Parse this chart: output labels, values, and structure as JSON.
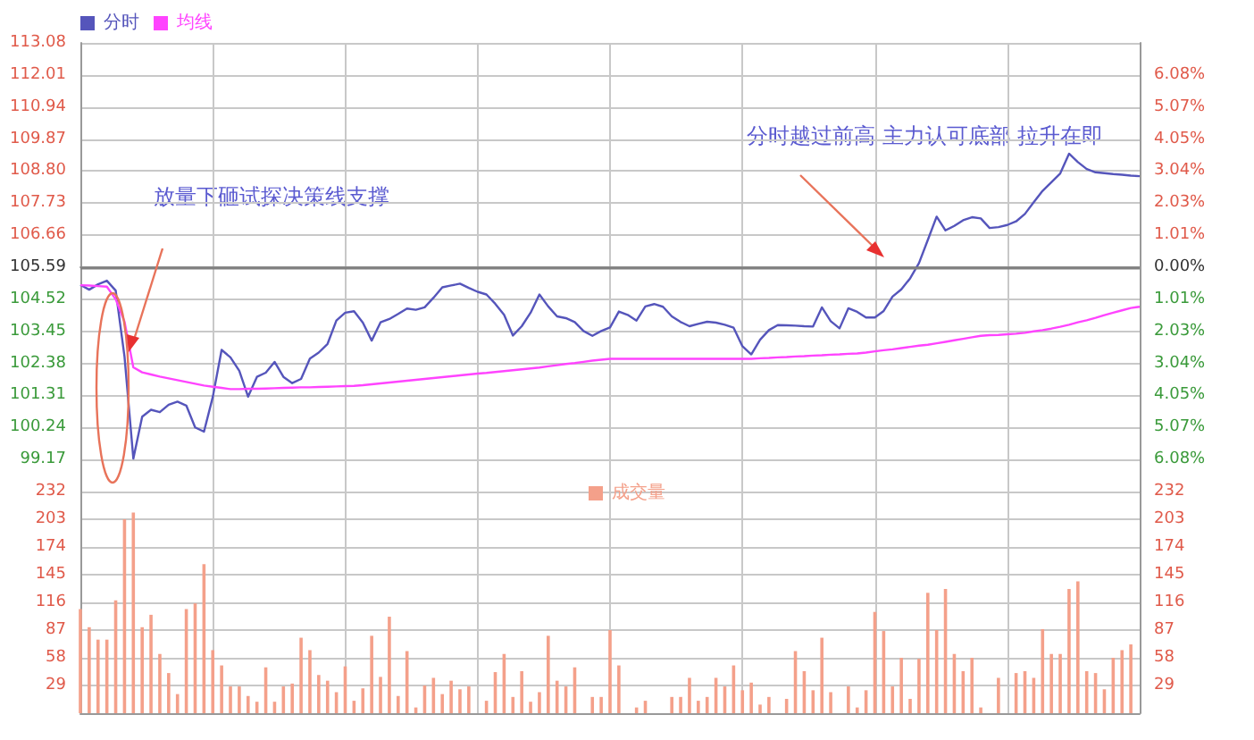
{
  "chart_data": [
    {
      "type": "line",
      "legend": "top left",
      "grid": true,
      "tick_labels": "y",
      "line_style": "solid",
      "annotations": [
        "放量下砸试探决策线支撑",
        "分时越过前高 主力认可底部 拉升在即"
      ],
      "categories": [
        null,
        null,
        null,
        null,
        null,
        null,
        null,
        null,
        null,
        null,
        null,
        null,
        null,
        null,
        null,
        null,
        null,
        null,
        null,
        null,
        null,
        null,
        null,
        null,
        null,
        null,
        null,
        null,
        null,
        null,
        null,
        null,
        null,
        null,
        null,
        null,
        null,
        null,
        null,
        null,
        null,
        null,
        null,
        null,
        null,
        null,
        null,
        null,
        null,
        null,
        null,
        null,
        null,
        null,
        null,
        null,
        null,
        null,
        null,
        null,
        null,
        null,
        null,
        null,
        null,
        null,
        null,
        null,
        null,
        null,
        null,
        null,
        null,
        null,
        null,
        null,
        null,
        null,
        null,
        null,
        null,
        null,
        null,
        null,
        null,
        null,
        null,
        null,
        null,
        null,
        null,
        null,
        null,
        null,
        null,
        null,
        null,
        null,
        null,
        null,
        null,
        null,
        null,
        null,
        null,
        null,
        null,
        null,
        null,
        null,
        null,
        null,
        null,
        null,
        null,
        null,
        null,
        null,
        null,
        null,
        null
      ],
      "ylim": [
        98.1,
        113.08
      ],
      "yticks": [
        99.17,
        100.24,
        101.31,
        102.38,
        103.45,
        104.52,
        105.59,
        106.66,
        107.73,
        {
          "value": 108.8,
          "label": "108.80"
        },
        109.87,
        110.94,
        112.01,
        113.08
      ],
      "y2lim": [
        -7.09,
        7.09
      ],
      "y2ticks": [
        {
          "value": -6.08,
          "label": "6.08%"
        },
        {
          "value": -5.07,
          "label": "5.07%"
        },
        {
          "value": -4.05,
          "label": "4.05%"
        },
        {
          "value": -3.04,
          "label": "3.04%"
        },
        {
          "value": -2.03,
          "label": "2.03%"
        },
        {
          "value": -1.01,
          "label": "1.01%"
        },
        {
          "value": 0,
          "label": "0.00%"
        },
        {
          "value": 1.01,
          "label": "1.01%"
        },
        {
          "value": 2.03,
          "label": "2.03%"
        },
        {
          "value": 3.04,
          "label": "3.04%"
        },
        {
          "value": 4.05,
          "label": "4.05%"
        },
        {
          "value": 5.07,
          "label": "5.07%"
        },
        {
          "value": 6.08,
          "label": "6.08%"
        }
      ],
      "ref_lines": [
        {
          "axis": "y",
          "value": 105.59,
          "color": "#808080"
        }
      ],
      "series": [
        {
          "name": "分时",
          "color": "#5555bb",
          "values": [
            105.0,
            104.84,
            105.02,
            105.14,
            104.81,
            102.6,
            99.2,
            100.6,
            100.83,
            100.75,
            101.0,
            101.1,
            100.97,
            100.24,
            100.1,
            101.26,
            102.83,
            102.58,
            102.13,
            101.27,
            101.93,
            102.07,
            102.43,
            101.93,
            101.72,
            101.86,
            102.54,
            102.74,
            103.03,
            103.81,
            104.07,
            104.12,
            103.74,
            103.14,
            103.75,
            103.86,
            104.03,
            104.21,
            104.17,
            104.25,
            104.57,
            104.92,
            104.98,
            105.04,
            104.9,
            104.77,
            104.68,
            104.37,
            104.0,
            103.31,
            103.62,
            104.07,
            104.68,
            104.28,
            103.95,
            103.89,
            103.76,
            103.46,
            103.3,
            103.46,
            103.58,
            104.11,
            104.0,
            103.81,
            104.28,
            104.36,
            104.27,
            103.95,
            103.76,
            103.62,
            103.7,
            103.77,
            103.74,
            103.67,
            103.57,
            102.95,
            102.68,
            103.17,
            103.49,
            103.66,
            103.65,
            103.64,
            103.62,
            103.61,
            104.25,
            103.79,
            103.55,
            104.22,
            104.1,
            103.91,
            103.91,
            104.13,
            104.61,
            104.85,
            105.22,
            105.73,
            106.5,
            107.28,
            106.82,
            106.97,
            107.16,
            107.26,
            107.22,
            106.9,
            106.93,
            107.0,
            107.12,
            107.37,
            107.76,
            108.14,
            108.43,
            108.72,
            109.38,
            109.1,
            108.87,
            108.76,
            108.73,
            108.7,
            108.68,
            108.65,
            108.63
          ]
        },
        {
          "name": "均线",
          "color": "#ff44ff",
          "values": [
            104.99,
            104.98,
            104.96,
            104.94,
            104.52,
            103.77,
            102.25,
            102.08,
            102.01,
            101.94,
            101.88,
            101.82,
            101.76,
            101.7,
            101.64,
            101.6,
            101.56,
            101.52,
            101.52,
            101.53,
            101.53,
            101.54,
            101.55,
            101.56,
            101.57,
            101.58,
            101.58,
            101.59,
            101.6,
            101.61,
            101.62,
            101.63,
            101.65,
            101.68,
            101.71,
            101.74,
            101.77,
            101.8,
            101.83,
            101.86,
            101.89,
            101.92,
            101.95,
            101.98,
            102.01,
            102.04,
            102.06,
            102.09,
            102.12,
            102.15,
            102.18,
            102.21,
            102.24,
            102.28,
            102.32,
            102.36,
            102.39,
            102.43,
            102.47,
            102.5,
            102.53,
            102.53,
            102.53,
            102.53,
            102.53,
            102.53,
            102.53,
            102.53,
            102.53,
            102.53,
            102.53,
            102.53,
            102.53,
            102.53,
            102.53,
            102.53,
            102.53,
            102.55,
            102.56,
            102.58,
            102.59,
            102.61,
            102.62,
            102.64,
            102.65,
            102.67,
            102.68,
            102.7,
            102.71,
            102.74,
            102.78,
            102.82,
            102.85,
            102.89,
            102.93,
            102.97,
            103.0,
            103.05,
            103.1,
            103.15,
            103.2,
            103.25,
            103.3,
            103.32,
            103.33,
            103.35,
            103.37,
            103.4,
            103.45,
            103.49,
            103.54,
            103.6,
            103.67,
            103.75,
            103.82,
            103.9,
            103.99,
            104.07,
            104.15,
            104.23,
            104.27
          ]
        }
      ]
    },
    {
      "type": "bar",
      "legend": "top",
      "grid": true,
      "tick_labels": "y",
      "categories": [
        null,
        null,
        null,
        null,
        null,
        null,
        null,
        null,
        null,
        null,
        null,
        null,
        null,
        null,
        null,
        null,
        null,
        null,
        null,
        null,
        null,
        null,
        null,
        null,
        null,
        null,
        null,
        null,
        null,
        null,
        null,
        null,
        null,
        null,
        null,
        null,
        null,
        null,
        null,
        null,
        null,
        null,
        null,
        null,
        null,
        null,
        null,
        null,
        null,
        null,
        null,
        null,
        null,
        null,
        null,
        null,
        null,
        null,
        null,
        null,
        null,
        null,
        null,
        null,
        null,
        null,
        null,
        null,
        null,
        null,
        null,
        null,
        null,
        null,
        null,
        null,
        null,
        null,
        null,
        null,
        null,
        null,
        null,
        null,
        null,
        null,
        null,
        null,
        null,
        null,
        null,
        null,
        null,
        null,
        null,
        null,
        null,
        null,
        null,
        null,
        null,
        null,
        null,
        null,
        null,
        null,
        null,
        null,
        null,
        null,
        null,
        null,
        null,
        null,
        null,
        null,
        null,
        null,
        null,
        null,
        null
      ],
      "ylim": [
        0,
        232
      ],
      "yticks": [
        29,
        58,
        87,
        116,
        145,
        174,
        203,
        232
      ],
      "y2lim": [
        0,
        232
      ],
      "y2ticks": [
        29,
        58,
        87,
        116,
        145,
        174,
        203,
        232
      ],
      "series": [
        {
          "name": "成交量",
          "color": "#f4a08a",
          "values": [
            109,
            90,
            77,
            77,
            118,
            203,
            210,
            90,
            103,
            62,
            42,
            20,
            109,
            115,
            156,
            66,
            50,
            28,
            28,
            18,
            12,
            48,
            12,
            28,
            31,
            79,
            66,
            40,
            34,
            22,
            49,
            13,
            26,
            81,
            38,
            101,
            18,
            65,
            6,
            29,
            37,
            20,
            34,
            25,
            28,
            null,
            13,
            43,
            62,
            17,
            44,
            12,
            22,
            81,
            34,
            28,
            48,
            null,
            17,
            17,
            87,
            50,
            null,
            6,
            13,
            null,
            null,
            17,
            17,
            37,
            13,
            17,
            37,
            28,
            50,
            24,
            32,
            9,
            17,
            null,
            15,
            65,
            44,
            24,
            79,
            22,
            null,
            28,
            6,
            24,
            106,
            86,
            28,
            58,
            15,
            57,
            126,
            87,
            130,
            62,
            44,
            58,
            6,
            null,
            37,
            null,
            42,
            44,
            37,
            88,
            62,
            62,
            130,
            138,
            44,
            42,
            25,
            58,
            66,
            72,
            null
          ]
        }
      ]
    }
  ]
}
